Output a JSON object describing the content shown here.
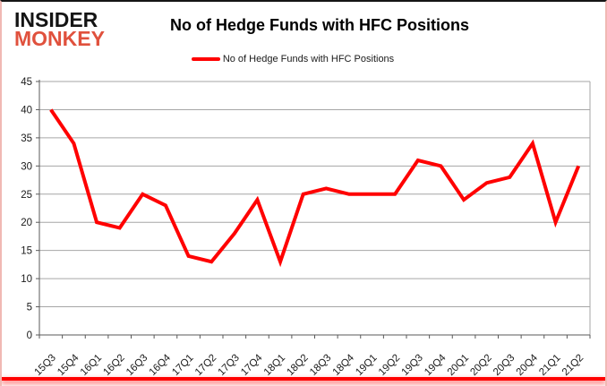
{
  "logo": {
    "line1": "INSIDER",
    "line2": "MONKEY",
    "color": "#e0513d"
  },
  "header": {
    "title": "No of Hedge Funds with HFC Positions"
  },
  "legend": {
    "label": "No of Hedge Funds with HFC Positions"
  },
  "chart_data": {
    "type": "line",
    "title": "No of Hedge Funds with HFC Positions",
    "series_name": "No of Hedge Funds with HFC Positions",
    "categories": [
      "15Q3",
      "15Q4",
      "16Q1",
      "16Q2",
      "16Q3",
      "16Q4",
      "17Q1",
      "17Q2",
      "17Q3",
      "17Q4",
      "18Q1",
      "18Q2",
      "18Q3",
      "18Q4",
      "19Q1",
      "19Q2",
      "19Q3",
      "19Q4",
      "20Q1",
      "20Q2",
      "20Q3",
      "20Q4",
      "21Q1",
      "21Q2"
    ],
    "values": [
      40,
      34,
      20,
      19,
      25,
      23,
      14,
      13,
      18,
      24,
      13,
      25,
      26,
      25,
      25,
      25,
      31,
      30,
      24,
      27,
      28,
      34,
      20,
      30
    ],
    "ylim": [
      0,
      45
    ],
    "y_ticks": [
      0,
      5,
      10,
      15,
      20,
      25,
      30,
      35,
      40,
      45
    ],
    "grid": true,
    "legend_position": "top",
    "line_color": "#ff0000",
    "grid_color": "#a6a6a6",
    "axis_color": "#595959",
    "label_color": "#1a1a1a"
  },
  "frame": {
    "accent_color": "#ff0000"
  }
}
